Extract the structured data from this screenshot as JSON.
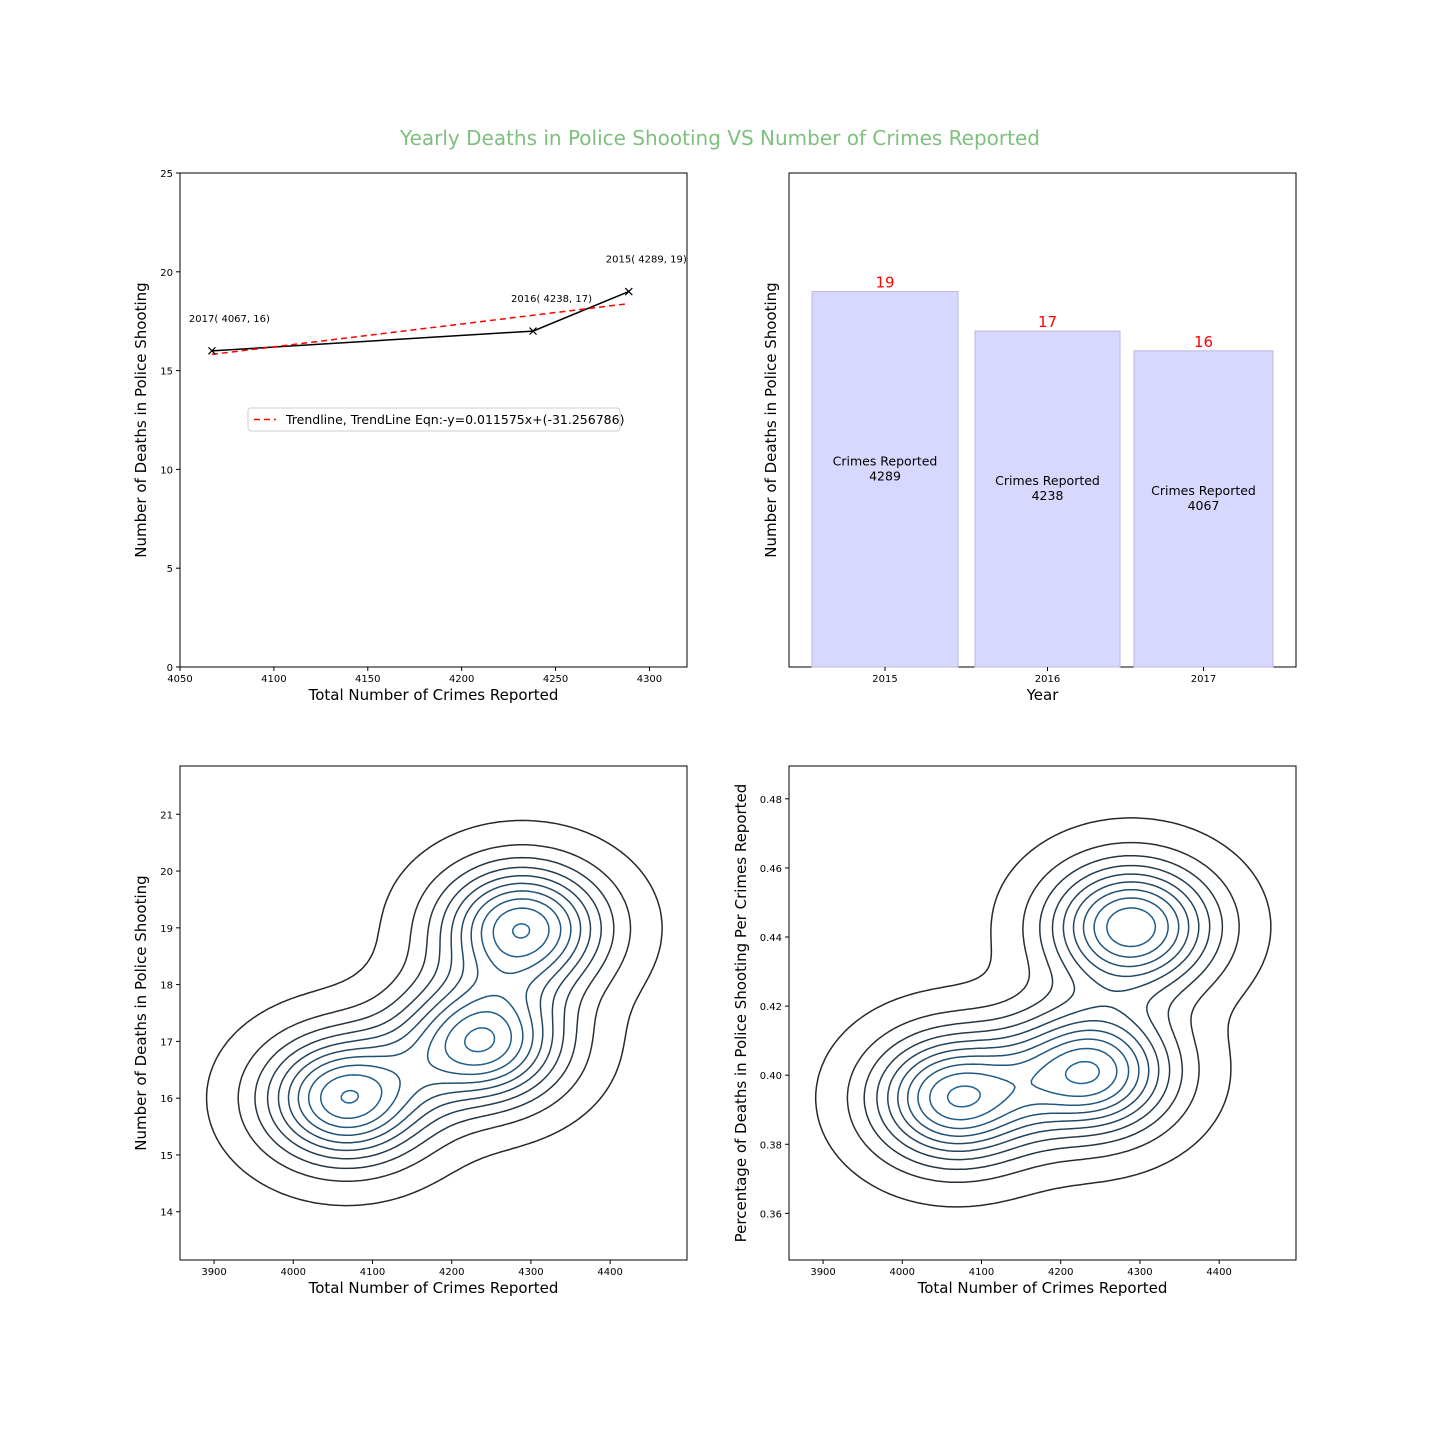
{
  "figure": {
    "title": "Yearly Deaths in Police Shooting VS Number of Crimes Reported",
    "title_color": "#7fbf7f"
  },
  "chart_data": [
    {
      "type": "line",
      "title": "",
      "xlabel": "Total Number of Crimes Reported",
      "ylabel": "Number of Deaths in Police Shooting",
      "xlim": [
        4050,
        4320
      ],
      "ylim": [
        0,
        25
      ],
      "xticks": [
        4050,
        4100,
        4150,
        4200,
        4250,
        4300
      ],
      "yticks": [
        0,
        5,
        10,
        15,
        20,
        25
      ],
      "grid": false,
      "series": [
        {
          "x": [
            4067,
            4238,
            4289
          ],
          "y": [
            16,
            17,
            19
          ],
          "color": "#000000",
          "marker": "x",
          "point_labels": [
            "2017( 4067, 16)",
            "2016( 4238, 17)",
            "2015( 4289, 19)"
          ]
        },
        {
          "name": "Trendline, TrendLine Eqn:-y=0.011575x+(-31.256786)",
          "x": [
            4067,
            4289
          ],
          "y": [
            15.82,
            18.39
          ],
          "color": "#ff0000",
          "dashed": true
        }
      ],
      "legend": "center"
    },
    {
      "type": "bar",
      "title": "",
      "xlabel": "Year",
      "ylabel": "Number of Deaths in Police Shooting",
      "categories": [
        "2015",
        "2016",
        "2017"
      ],
      "values": [
        19,
        17,
        16
      ],
      "value_labels": [
        "19",
        "17",
        "16"
      ],
      "value_label_color": "#ff0000",
      "bar_text": [
        [
          "Crimes Reported",
          "4289"
        ],
        [
          "Crimes Reported",
          "4238"
        ],
        [
          "Crimes Reported",
          "4067"
        ]
      ],
      "bar_color": "#d8d8ff",
      "ylim": [
        0,
        25
      ],
      "yticks_shown": false,
      "grid": false
    },
    {
      "type": "contour",
      "title": "",
      "xlabel": "Total Number of Crimes Reported",
      "ylabel": "Number of Deaths in Police Shooting",
      "xlim": [
        3857,
        4497
      ],
      "ylim": [
        13.15,
        21.85
      ],
      "xticks": [
        3900,
        4000,
        4100,
        4200,
        4300,
        4400
      ],
      "yticks": [
        14,
        15,
        16,
        17,
        18,
        19,
        20,
        21
      ],
      "points": [
        {
          "x": 4067,
          "y": 16
        },
        {
          "x": 4238,
          "y": 17
        },
        {
          "x": 4289,
          "y": 19
        }
      ],
      "bandwidth": {
        "x": 70,
        "y": 0.75
      },
      "cmap": "blues_dark",
      "levels": 10
    },
    {
      "type": "contour",
      "title": "",
      "xlabel": "Total Number of Crimes Reported",
      "ylabel": "Percentage of Deaths in Police Shooting Per Crimes Reported",
      "xlim": [
        3857,
        4497
      ],
      "ylim": [
        0.3465,
        0.4895
      ],
      "xticks": [
        3900,
        4000,
        4100,
        4200,
        4300,
        4400
      ],
      "yticks": [
        0.36,
        0.38,
        0.4,
        0.42,
        0.44,
        0.46,
        0.48
      ],
      "points": [
        {
          "x": 4067,
          "y": 0.3934
        },
        {
          "x": 4238,
          "y": 0.4011
        },
        {
          "x": 4289,
          "y": 0.443
        }
      ],
      "bandwidth": {
        "x": 70,
        "y": 0.0125
      },
      "cmap": "blues_dark",
      "levels": 10
    }
  ]
}
